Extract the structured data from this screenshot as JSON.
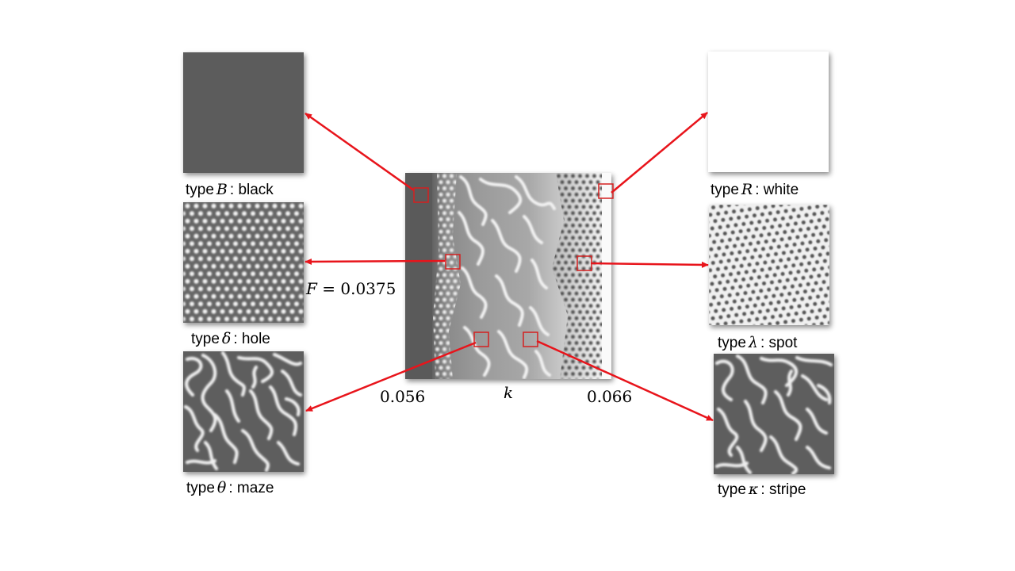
{
  "types": {
    "black": {
      "word": "type",
      "symbol": "B",
      "label": ": black"
    },
    "hole": {
      "word": "type",
      "symbol": "δ",
      "label": ": hole"
    },
    "maze": {
      "word": "type",
      "symbol": "θ",
      "label": ": maze"
    },
    "white": {
      "word": "type",
      "symbol": "R",
      "label": ": white"
    },
    "spot": {
      "word": "type",
      "symbol": "λ",
      "label": ": spot"
    },
    "stripe": {
      "word": "type",
      "symbol": "κ",
      "label": ": stripe"
    }
  },
  "axis": {
    "f_var": "F",
    "f_rest": " = 0.0375",
    "k_min": "0.056",
    "k_var": "k",
    "k_max": "0.066"
  },
  "colors": {
    "arrow": "#e8141b",
    "marker": "#d42020",
    "dark_gray": "#5c5c5c",
    "white": "#ffffff"
  }
}
